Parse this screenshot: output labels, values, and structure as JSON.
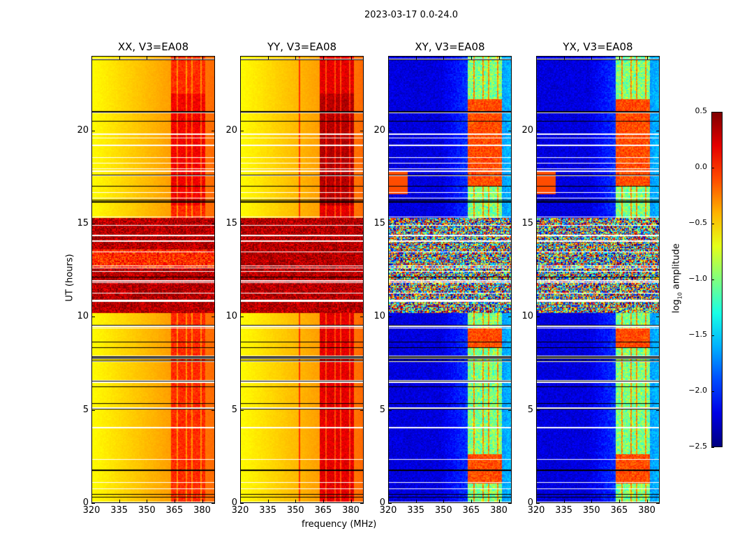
{
  "chart_data": {
    "type": "heatmap",
    "title": "2023-03-17 0.0-24.0",
    "xlabel": "frequency (MHz)",
    "ylabel": "UT (hours)",
    "xlim": [
      320,
      387
    ],
    "ylim": [
      0,
      24
    ],
    "xticks": [
      "320",
      "335",
      "350",
      "365",
      "380"
    ],
    "xtick_values": [
      320,
      335,
      350,
      365,
      380
    ],
    "yticks": [
      "0",
      "5",
      "10",
      "15",
      "20"
    ],
    "ytick_values": [
      0,
      5,
      10,
      15,
      20
    ],
    "panels": [
      {
        "title": "XX, V3=EA08",
        "kind": "parallel"
      },
      {
        "title": "YY, V3=EA08",
        "kind": "parallel"
      },
      {
        "title": "XY, V3=EA08",
        "kind": "cross"
      },
      {
        "title": "YX, V3=EA08",
        "kind": "cross"
      }
    ],
    "rfi_band_mhz": [
      363,
      382
    ],
    "high_amplitude_hours": [
      10.2,
      15.3
    ],
    "black_flag_hours": [
      0.3,
      0.4,
      1.7,
      5.0,
      5.3,
      6.2,
      6.5,
      7.6,
      7.7,
      7.8,
      8.3,
      8.6,
      9.5,
      12.1,
      16.2,
      16.25,
      17.0,
      17.6,
      20.5,
      21.0,
      23.8
    ],
    "colorbar": {
      "label": "log10 amplitude",
      "label_main": "log",
      "label_sub": "10",
      "label_rest": " amplitude",
      "range": [
        -2.5,
        0.5
      ],
      "ticks": [
        "0.5",
        "0.0",
        "−0.5",
        "−1.0",
        "−1.5",
        "−2.0",
        "−2.5"
      ],
      "tick_values": [
        0.5,
        0.0,
        -0.5,
        -1.0,
        -1.5,
        -2.0,
        -2.5
      ],
      "colormap": "jet"
    }
  }
}
